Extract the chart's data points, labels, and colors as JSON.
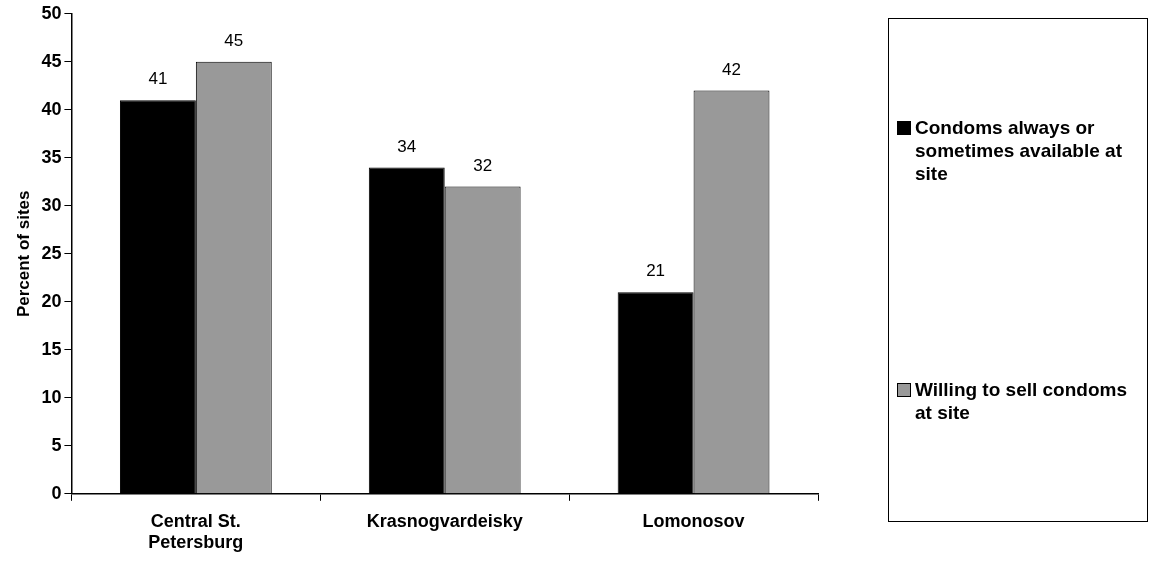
{
  "chart_data": {
    "type": "bar",
    "ylabel": "Percent of sites",
    "categories": [
      "Central St. Petersburg",
      "Krasnogvardeisky",
      "Lomonosov"
    ],
    "series": [
      {
        "name": "Condoms always or sometimes available at site",
        "color": "#000000",
        "values": [
          41,
          34,
          21
        ]
      },
      {
        "name": "Willing to sell condoms at site",
        "color": "#999999",
        "values": [
          45,
          32,
          42
        ]
      }
    ],
    "ylim": [
      0,
      50
    ],
    "yticks": [
      0,
      5,
      10,
      15,
      20,
      25,
      30,
      35,
      40,
      45,
      50
    ],
    "grid": false,
    "legend": "right",
    "data_labels": true
  }
}
